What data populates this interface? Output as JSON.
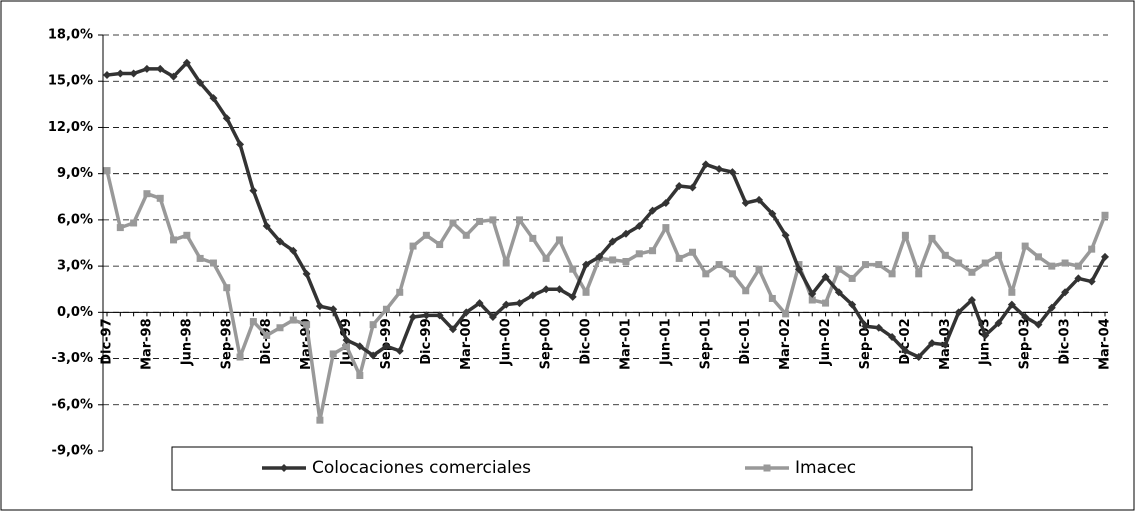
{
  "chart_data": {
    "type": "line",
    "categories": [
      "Dic-97",
      null,
      null,
      "Mar-98",
      null,
      null,
      "Jun-98",
      null,
      null,
      "Sep-98",
      null,
      null,
      "Dic-98",
      null,
      null,
      "Mar-99",
      null,
      null,
      "Jun-99",
      null,
      null,
      "Sep-99",
      null,
      null,
      "Dic-99",
      null,
      null,
      "Mar-00",
      null,
      null,
      "Jun-00",
      null,
      null,
      "Sep-00",
      null,
      null,
      "Dic-00",
      null,
      null,
      "Mar-01",
      null,
      null,
      "Jun-01",
      null,
      null,
      "Sep-01",
      null,
      null,
      "Dic-01",
      null,
      null,
      "Mar-02",
      null,
      null,
      "Jun-02",
      null,
      null,
      "Sep-02",
      null,
      null,
      "Dic-02",
      null,
      null,
      "Mar-03",
      null,
      null,
      "Jun-03",
      null,
      null,
      "Sep-03",
      null,
      null,
      "Dic-03",
      null,
      null,
      "Mar-04"
    ],
    "series": [
      {
        "name": "Colocaciones comerciales",
        "color": "#333333",
        "marker": "diamond",
        "values": [
          15.4,
          15.5,
          15.5,
          15.8,
          15.8,
          15.3,
          16.2,
          14.9,
          13.9,
          12.6,
          10.9,
          7.9,
          5.6,
          4.6,
          4.0,
          2.5,
          0.4,
          0.2,
          -1.8,
          -2.2,
          -2.8,
          -2.2,
          -2.5,
          -0.3,
          -0.2,
          -0.2,
          -1.1,
          0.0,
          0.6,
          -0.3,
          0.5,
          0.6,
          1.1,
          1.5,
          1.5,
          1.0,
          3.1,
          3.6,
          4.6,
          5.1,
          5.6,
          6.6,
          7.1,
          8.2,
          8.1,
          9.6,
          9.3,
          9.1,
          7.1,
          7.3,
          6.4,
          5.0,
          2.8,
          1.2,
          2.3,
          1.3,
          0.5,
          -0.9,
          -1.0,
          -1.6,
          -2.5,
          -2.9,
          -2.0,
          -2.1,
          0.0,
          0.8,
          -1.5,
          -0.7,
          0.5,
          -0.3,
          -0.8,
          0.3,
          1.3,
          2.2,
          2.0,
          3.6
        ]
      },
      {
        "name": "Imacec",
        "color": "#999999",
        "marker": "square",
        "values": [
          9.2,
          5.5,
          5.8,
          7.7,
          7.4,
          4.7,
          5.0,
          3.5,
          3.2,
          1.6,
          -2.9,
          -0.6,
          -1.5,
          -1.0,
          -0.5,
          -0.8,
          -7.0,
          -2.7,
          -2.2,
          -4.1,
          -0.8,
          0.2,
          1.3,
          4.3,
          5.0,
          4.4,
          5.8,
          5.0,
          5.9,
          6.0,
          3.2,
          6.0,
          4.8,
          3.5,
          4.7,
          2.8,
          1.3,
          3.5,
          3.4,
          3.3,
          3.8,
          4.0,
          5.5,
          3.5,
          3.9,
          2.5,
          3.1,
          2.5,
          1.4,
          2.8,
          0.9,
          -0.1,
          3.1,
          0.8,
          0.6,
          2.8,
          2.2,
          3.1,
          3.1,
          2.5,
          5.0,
          2.5,
          4.8,
          3.7,
          3.2,
          2.6,
          3.2,
          3.7,
          1.3,
          4.3,
          3.6,
          3.0,
          3.2,
          3.0,
          4.1,
          6.3
        ]
      }
    ],
    "ylim": [
      -9,
      18
    ],
    "yticks": [
      {
        "value": -9,
        "label": "-9,0%"
      },
      {
        "value": -6,
        "label": "-6,0%"
      },
      {
        "value": -3,
        "label": "-3,0%"
      },
      {
        "value": 0,
        "label": "0,0%"
      },
      {
        "value": 3,
        "label": "3,0%"
      },
      {
        "value": 6,
        "label": "6,0%"
      },
      {
        "value": 9,
        "label": "9,0%"
      },
      {
        "value": 12,
        "label": "12,0%"
      },
      {
        "value": 15,
        "label": "15,0%"
      },
      {
        "value": 18,
        "label": "18,0%"
      }
    ],
    "grid": true,
    "legend": "bottom"
  }
}
